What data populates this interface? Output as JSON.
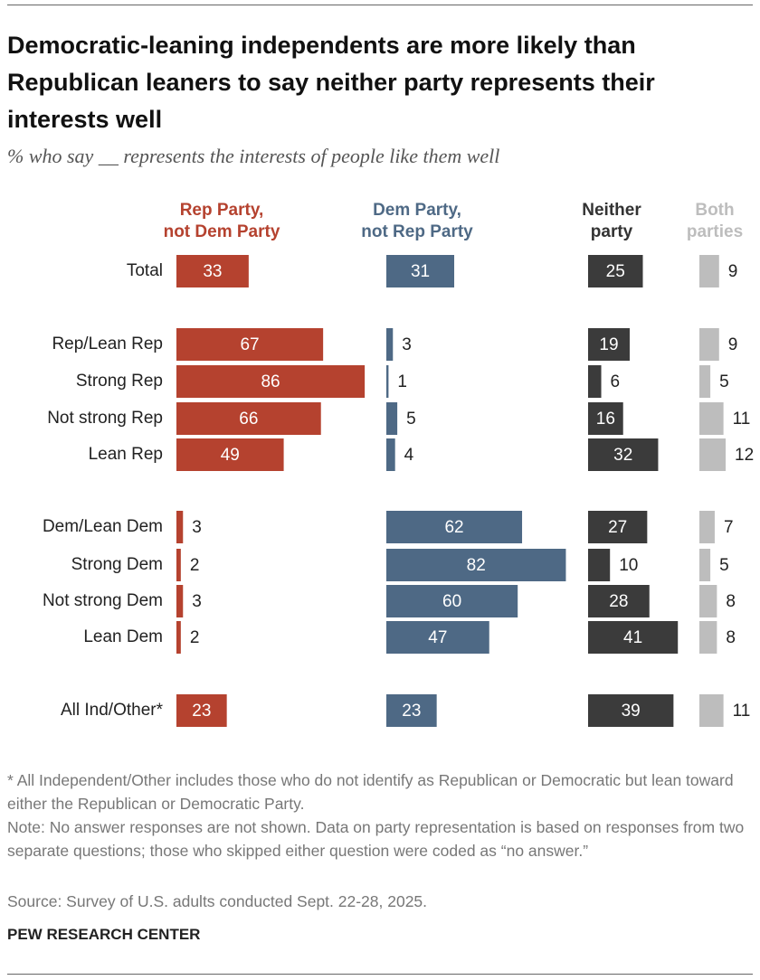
{
  "chart_data": {
    "type": "bar",
    "title": "Democratic-leaning independents are more likely than Republican leaners to say neither party represents their interests well",
    "subtitle": "% who say __ represents the interests of people like them well",
    "categories": [
      "Total",
      "Rep/Lean Rep",
      "Strong Rep",
      "Not strong Rep",
      "Lean Rep",
      "Dem/Lean Dem",
      "Strong Dem",
      "Not strong Dem",
      "Lean Dem",
      "All Ind/Other*"
    ],
    "series": [
      {
        "name": "Rep Party,\nnot Dem Party",
        "color": "#b5422f",
        "values": [
          33,
          67,
          86,
          66,
          49,
          3,
          2,
          3,
          2,
          23
        ]
      },
      {
        "name": "Dem Party,\nnot Rep Party",
        "color": "#4e6985",
        "values": [
          31,
          3,
          1,
          5,
          4,
          62,
          82,
          60,
          47,
          23
        ]
      },
      {
        "name": "Neither\nparty",
        "color": "#3b3b3b",
        "values": [
          25,
          19,
          6,
          16,
          32,
          27,
          10,
          28,
          41,
          39
        ]
      },
      {
        "name": "Both\nparties",
        "color": "#bdbdbd",
        "values": [
          9,
          9,
          5,
          11,
          12,
          7,
          5,
          8,
          8,
          11
        ]
      }
    ],
    "footnote": "* All Independent/Other includes those who do not identify as Republican or Democratic but lean toward either the Republican or Democratic Party.",
    "note": "Note: No answer responses are not shown. Data on party representation is based on responses from two separate questions; those who skipped either question were coded as “no answer.”",
    "source": "Source: Survey of U.S. adults conducted Sept. 22-28, 2025.",
    "brand": "PEW RESEARCH CENTER"
  }
}
